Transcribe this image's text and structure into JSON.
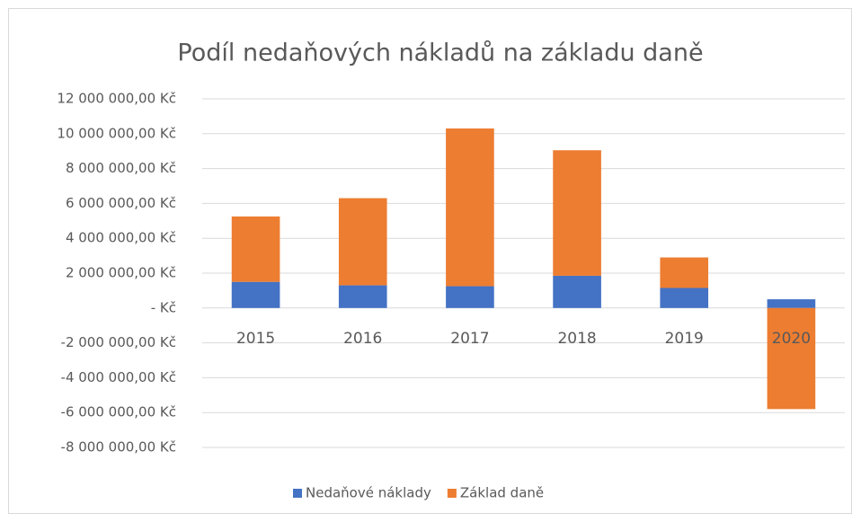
{
  "chart_data": {
    "type": "stacked_bar",
    "title": "Podíl nedaňových nákladů na základu daně",
    "categories": [
      "2015",
      "2016",
      "2017",
      "2018",
      "2019",
      "2020"
    ],
    "series": [
      {
        "name": "Nedaňové náklady",
        "color": "#4472c4",
        "values": [
          1500000,
          1300000,
          1250000,
          1850000,
          1150000,
          500000
        ]
      },
      {
        "name": "Základ daně",
        "color": "#ed7d31",
        "values": [
          3750000,
          5000000,
          9050000,
          7200000,
          1750000,
          -5800000
        ]
      }
    ],
    "ylim": [
      -8000000,
      12000000
    ],
    "yticks": [
      {
        "value": 12000000,
        "label": "12 000 000,00 Kč"
      },
      {
        "value": 10000000,
        "label": "10 000 000,00 Kč"
      },
      {
        "value": 8000000,
        "label": "8 000 000,00 Kč"
      },
      {
        "value": 6000000,
        "label": "6 000 000,00 Kč"
      },
      {
        "value": 4000000,
        "label": "4 000 000,00 Kč"
      },
      {
        "value": 2000000,
        "label": "2 000 000,00 Kč"
      },
      {
        "value": 0,
        "label": "-   Kč"
      },
      {
        "value": -2000000,
        "label": "-2 000 000,00 Kč"
      },
      {
        "value": -4000000,
        "label": "-4 000 000,00 Kč"
      },
      {
        "value": -6000000,
        "label": "-6 000 000,00 Kč"
      },
      {
        "value": -8000000,
        "label": "-8 000 000,00 Kč"
      }
    ],
    "grid": true,
    "legend": "bottom"
  }
}
